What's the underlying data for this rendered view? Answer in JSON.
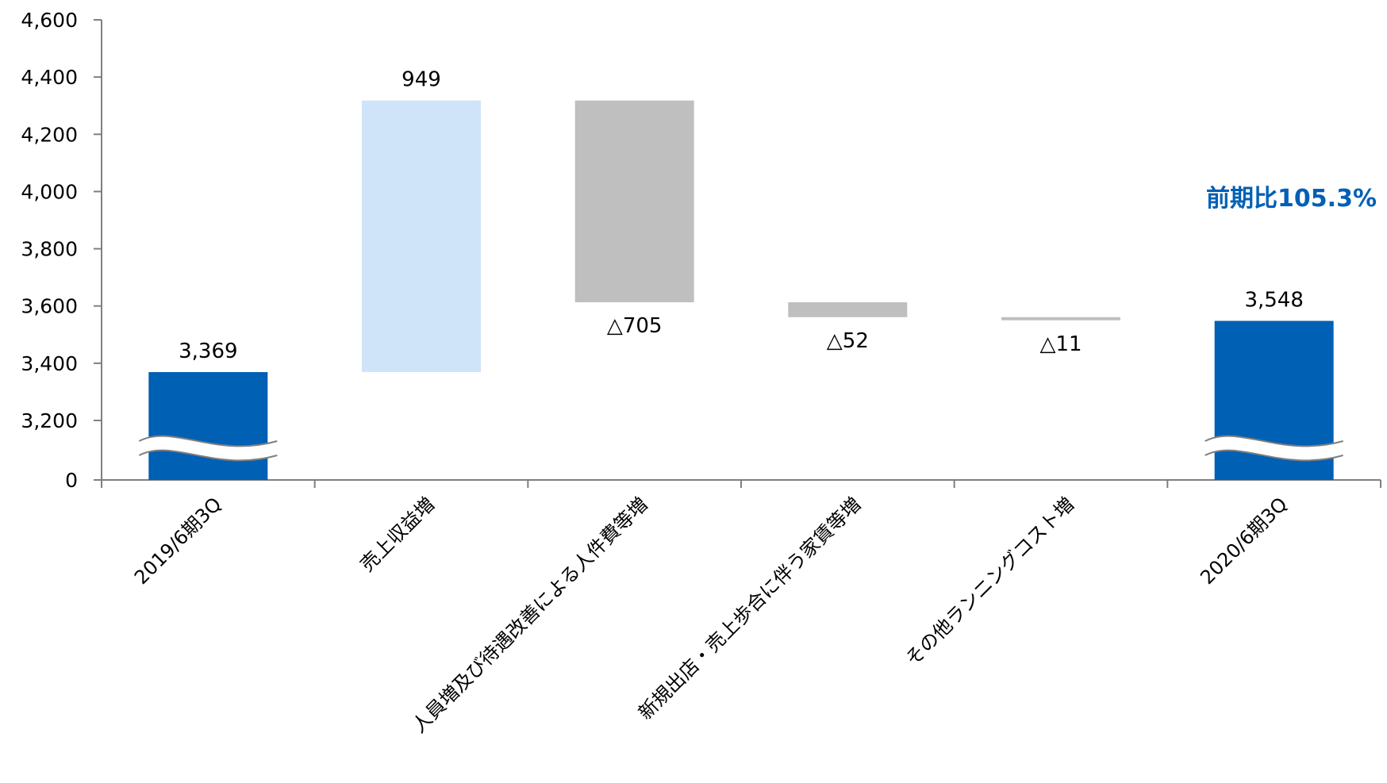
{
  "chart_data": {
    "type": "bar",
    "subtype": "waterfall",
    "title": "",
    "xlabel": "",
    "ylabel": "",
    "ylim": [
      3200,
      4600
    ],
    "yticks": [
      "4,600",
      "4,400",
      "4,200",
      "4,000",
      "3,800",
      "3,600",
      "3,400",
      "3,200",
      "0"
    ],
    "ytick_values": [
      4600,
      4400,
      4200,
      4000,
      3800,
      3600,
      3400,
      3200,
      0
    ],
    "axis_break": true,
    "grid": false,
    "categories": [
      "2019/6期3Q",
      "売上収益増",
      "人員増及び待遇改善による人件費等増",
      "新規出店・売上歩合に伴う家賃等増",
      "その他ランニングコスト増",
      "2020/6期3Q"
    ],
    "bars": [
      {
        "kind": "total",
        "start": 0,
        "end": 3369,
        "value": 3369,
        "label": "3,369",
        "color": "#0060B4"
      },
      {
        "kind": "increase",
        "start": 3369,
        "end": 4318,
        "value": 949,
        "label": "949",
        "color": "#CFE4F8"
      },
      {
        "kind": "decrease",
        "start": 4318,
        "end": 3613,
        "value": -705,
        "label": "△705",
        "color": "#BFBFBF"
      },
      {
        "kind": "decrease",
        "start": 3613,
        "end": 3561,
        "value": -52,
        "label": "△52",
        "color": "#BFBFBF"
      },
      {
        "kind": "decrease",
        "start": 3561,
        "end": 3550,
        "value": -11,
        "label": "△11",
        "color": "#BFBFBF"
      },
      {
        "kind": "total",
        "start": 0,
        "end": 3548,
        "value": 3548,
        "label": "3,548",
        "color": "#0060B4"
      }
    ],
    "annotation": {
      "text": "前期比105.3%",
      "color": "#0060B4"
    }
  }
}
